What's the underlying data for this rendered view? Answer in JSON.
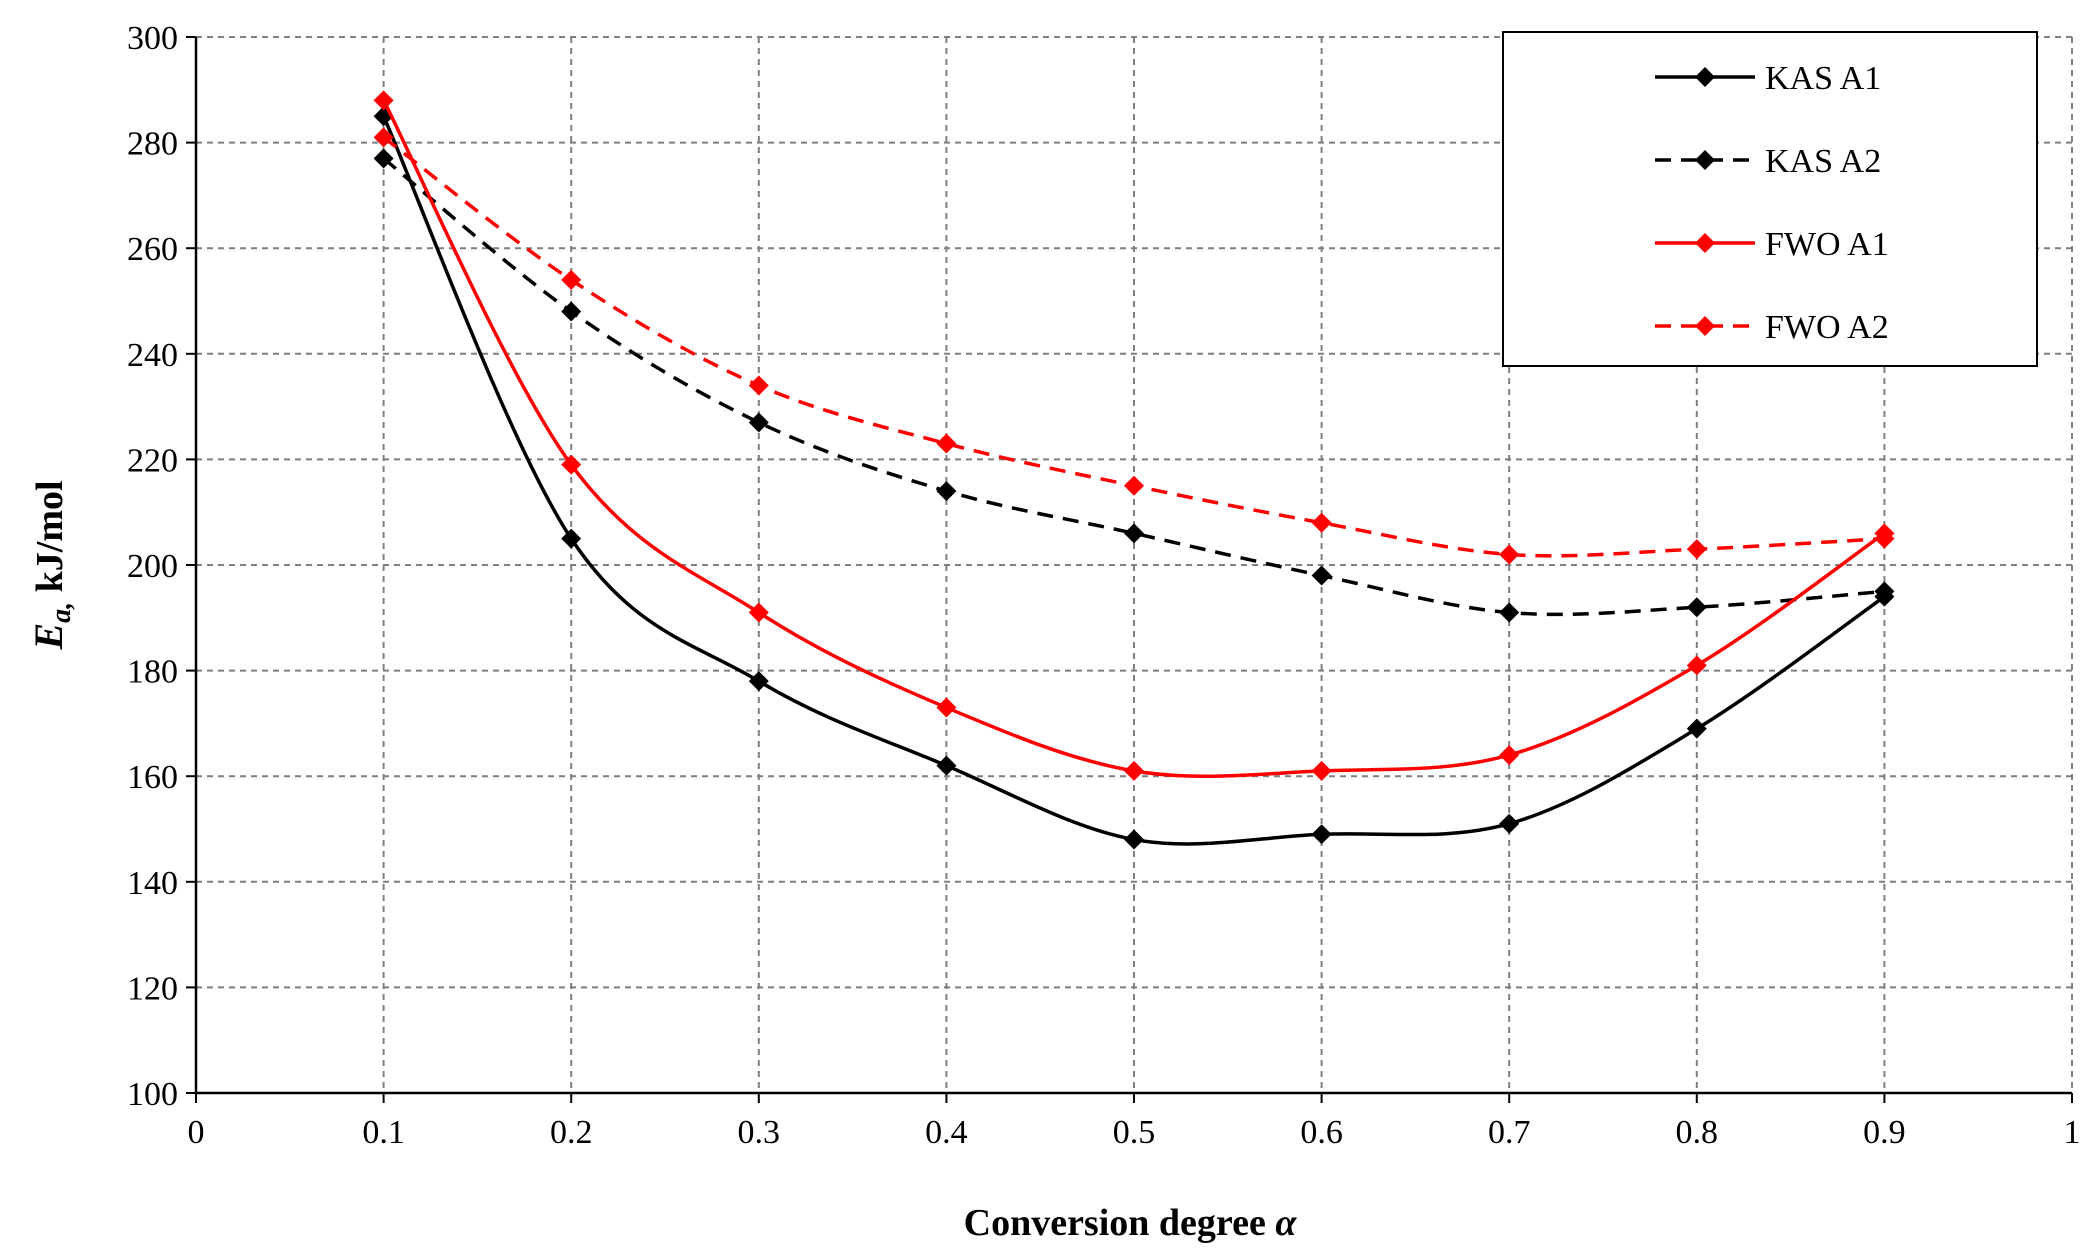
{
  "chart_data": {
    "type": "line",
    "title": "",
    "xlabel": "Conversion degree",
    "xlabel_symbol": "α",
    "ylabel_symbol": "E",
    "ylabel_subscript": "a,",
    "ylabel_unit": " kJ/mol",
    "xlim": [
      0,
      1
    ],
    "ylim": [
      100,
      300
    ],
    "xticks": [
      "0",
      "0.1",
      "0.2",
      "0.3",
      "0.4",
      "0.5",
      "0.6",
      "0.7",
      "0.8",
      "0.9",
      "1"
    ],
    "yticks": [
      "100",
      "120",
      "140",
      "160",
      "180",
      "200",
      "220",
      "240",
      "260",
      "280",
      "300"
    ],
    "grid": true,
    "legend_position": "top-right",
    "x": [
      0.1,
      0.2,
      0.3,
      0.4,
      0.5,
      0.6,
      0.7,
      0.8,
      0.9
    ],
    "series": [
      {
        "name": "KAS A1",
        "color": "#000000",
        "dashed": false,
        "values": [
          285,
          205,
          178,
          162,
          148,
          149,
          151,
          169,
          194
        ]
      },
      {
        "name": "KAS A2",
        "color": "#000000",
        "dashed": true,
        "values": [
          277,
          248,
          227,
          214,
          206,
          198,
          191,
          192,
          195
        ]
      },
      {
        "name": "FWO A1",
        "color": "#ff0000",
        "dashed": false,
        "values": [
          288,
          219,
          191,
          173,
          161,
          161,
          164,
          181,
          206
        ]
      },
      {
        "name": "FWO A2",
        "color": "#ff0000",
        "dashed": true,
        "values": [
          281,
          254,
          234,
          223,
          215,
          208,
          202,
          203,
          205
        ]
      }
    ]
  }
}
